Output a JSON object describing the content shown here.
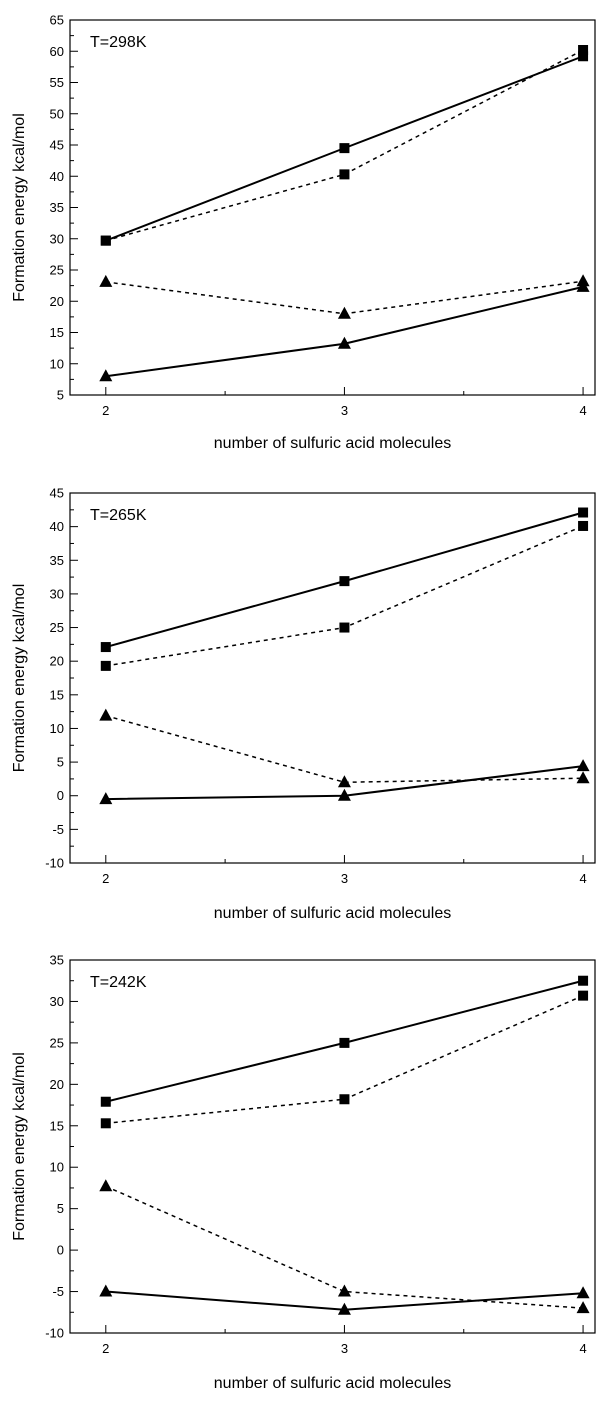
{
  "chart_data": [
    {
      "type": "line",
      "annotation": "T=298K",
      "xlabel": "number of sulfuric acid molecules",
      "ylabel": "Formation energy kcal/mol",
      "x": [
        2,
        3,
        4
      ],
      "xlim": [
        1.85,
        4.05
      ],
      "xticks": [
        2,
        3,
        4
      ],
      "ylim": [
        5,
        65
      ],
      "yticks": [
        5,
        10,
        15,
        20,
        25,
        30,
        35,
        40,
        45,
        50,
        55,
        60,
        65
      ],
      "grid": false,
      "series": [
        {
          "marker": "square",
          "linestyle": "solid",
          "values": [
            29.7,
            44.5,
            59.2
          ]
        },
        {
          "marker": "square",
          "linestyle": "dashed",
          "values": [
            29.7,
            40.3,
            60.2
          ]
        },
        {
          "marker": "triangle",
          "linestyle": "dashed",
          "values": [
            23.1,
            18.0,
            23.2
          ]
        },
        {
          "marker": "triangle",
          "linestyle": "solid",
          "values": [
            8.0,
            13.2,
            22.3
          ]
        }
      ]
    },
    {
      "type": "line",
      "annotation": "T=265K",
      "xlabel": "number of sulfuric acid molecules",
      "ylabel": "Formation energy kcal/mol",
      "x": [
        2,
        3,
        4
      ],
      "xlim": [
        1.85,
        4.05
      ],
      "xticks": [
        2,
        3,
        4
      ],
      "ylim": [
        -10,
        45
      ],
      "yticks": [
        -10,
        -5,
        0,
        5,
        10,
        15,
        20,
        25,
        30,
        35,
        40,
        45
      ],
      "grid": false,
      "series": [
        {
          "marker": "square",
          "linestyle": "solid",
          "values": [
            22.1,
            31.9,
            42.1
          ]
        },
        {
          "marker": "square",
          "linestyle": "dashed",
          "values": [
            19.3,
            25.0,
            40.1
          ]
        },
        {
          "marker": "triangle",
          "linestyle": "dashed",
          "values": [
            11.9,
            2.0,
            2.6
          ]
        },
        {
          "marker": "triangle",
          "linestyle": "solid",
          "values": [
            -0.5,
            0.0,
            4.4
          ]
        }
      ]
    },
    {
      "type": "line",
      "annotation": "T=242K",
      "xlabel": "number of sulfuric acid molecules",
      "ylabel": "Formation energy kcal/mol",
      "x": [
        2,
        3,
        4
      ],
      "xlim": [
        1.85,
        4.05
      ],
      "xticks": [
        2,
        3,
        4
      ],
      "ylim": [
        -10,
        35
      ],
      "yticks": [
        -10,
        -5,
        0,
        5,
        10,
        15,
        20,
        25,
        30,
        35
      ],
      "grid": false,
      "series": [
        {
          "marker": "square",
          "linestyle": "solid",
          "values": [
            17.9,
            25.0,
            32.5
          ]
        },
        {
          "marker": "square",
          "linestyle": "dashed",
          "values": [
            15.3,
            18.2,
            30.7
          ]
        },
        {
          "marker": "triangle",
          "linestyle": "dashed",
          "values": [
            7.7,
            -5.0,
            -7.0
          ]
        },
        {
          "marker": "triangle",
          "linestyle": "solid",
          "values": [
            -5.0,
            -7.2,
            -5.2
          ]
        }
      ]
    }
  ]
}
